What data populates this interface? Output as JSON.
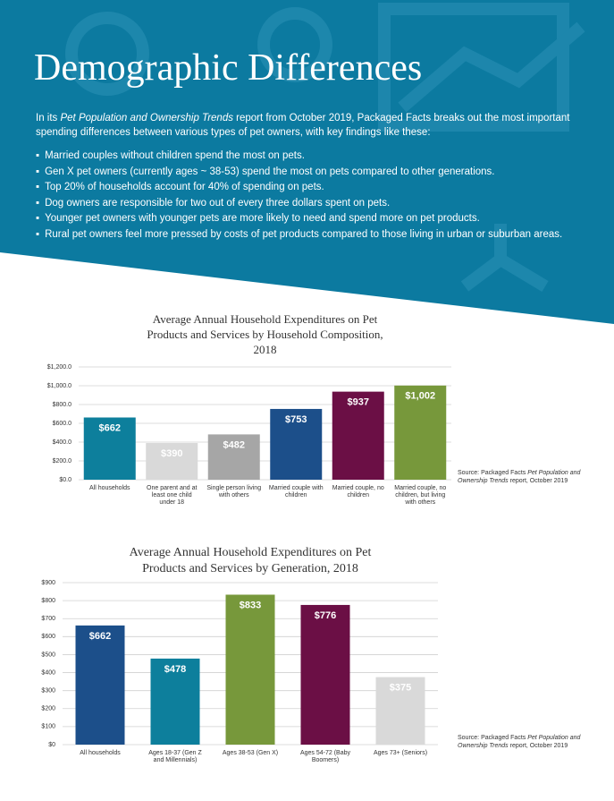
{
  "header": {
    "title": "Demographic Differences",
    "intro": [
      "In its ",
      "Pet Population and Ownership Trends",
      " report from October 2019, Packaged Facts breaks out the most important spending differences between various types of pet owners, with key findings like these:"
    ],
    "bullets": [
      "Married couples without children spend the most on pets.",
      "Gen X pet owners (currently ages ~ 38-53) spend the most on pets compared to other generations.",
      "Top 20% of households account for 40% of spending on pets.",
      "Dog owners are responsible for two out of every three dollars spent on pets.",
      "Younger pet owners with younger pets are more likely to need and spend more on pet products.",
      "Rural pet owners feel more pressed by costs of pet products compared to those living in urban or suburban areas."
    ]
  },
  "chart_data": [
    {
      "type": "bar",
      "title": "Average Annual Household Expenditures on Pet Products and Services by Household Composition, 2018",
      "categories": [
        "All households",
        "One parent and at least one child under 18",
        "Single person living with others",
        "Married couple with children",
        "Married couple, no children",
        "Married couple, no children, but living with others"
      ],
      "values": [
        662,
        390,
        482,
        753,
        937,
        1002
      ],
      "value_labels": [
        "$662",
        "$390",
        "$482",
        "$753",
        "$937",
        "$1,002"
      ],
      "colors": [
        "#0d7f9c",
        "#d9d9d9",
        "#a6a6a6",
        "#1c4f8a",
        "#6b0f45",
        "#77983b"
      ],
      "ylim": [
        0,
        1200
      ],
      "yticks": [
        {
          "value": 0,
          "label": "$0.0"
        },
        {
          "value": 200,
          "label": "$200.0"
        },
        {
          "value": 400,
          "label": "$400.0"
        },
        {
          "value": 600,
          "label": "$600.0"
        },
        {
          "value": 800,
          "label": "$800.0"
        },
        {
          "value": 1000,
          "label": "$1,000.0"
        },
        {
          "value": 1200,
          "label": "$1,200.0"
        }
      ],
      "grid": true,
      "source": [
        "Source: Packaged Facts ",
        "Pet Population and Ownership Trends",
        " report, October 2019"
      ]
    },
    {
      "type": "bar",
      "title": "Average Annual Household Expenditures on Pet Products and Services by Generation, 2018",
      "categories": [
        "All households",
        "Ages 18-37 (Gen Z and Millennials)",
        "Ages 38-53 (Gen X)",
        "Ages 54-72 (Baby Boomers)",
        "Ages 73+ (Seniors)"
      ],
      "values": [
        662,
        478,
        833,
        776,
        375
      ],
      "value_labels": [
        "$662",
        "$478",
        "$833",
        "$776",
        "$375"
      ],
      "colors": [
        "#1c4f8a",
        "#0d7f9c",
        "#77983b",
        "#6b0f45",
        "#d9d9d9"
      ],
      "ylim": [
        0,
        900
      ],
      "yticks": [
        {
          "value": 0,
          "label": "$0"
        },
        {
          "value": 100,
          "label": "$100"
        },
        {
          "value": 200,
          "label": "$200"
        },
        {
          "value": 300,
          "label": "$300"
        },
        {
          "value": 400,
          "label": "$400"
        },
        {
          "value": 500,
          "label": "$500"
        },
        {
          "value": 600,
          "label": "$600"
        },
        {
          "value": 700,
          "label": "$700"
        },
        {
          "value": 800,
          "label": "$800"
        },
        {
          "value": 900,
          "label": "$900"
        }
      ],
      "grid": true,
      "source": [
        "Source: Packaged Facts ",
        "Pet Population and Ownership Trends",
        " report, October 2019"
      ]
    }
  ]
}
